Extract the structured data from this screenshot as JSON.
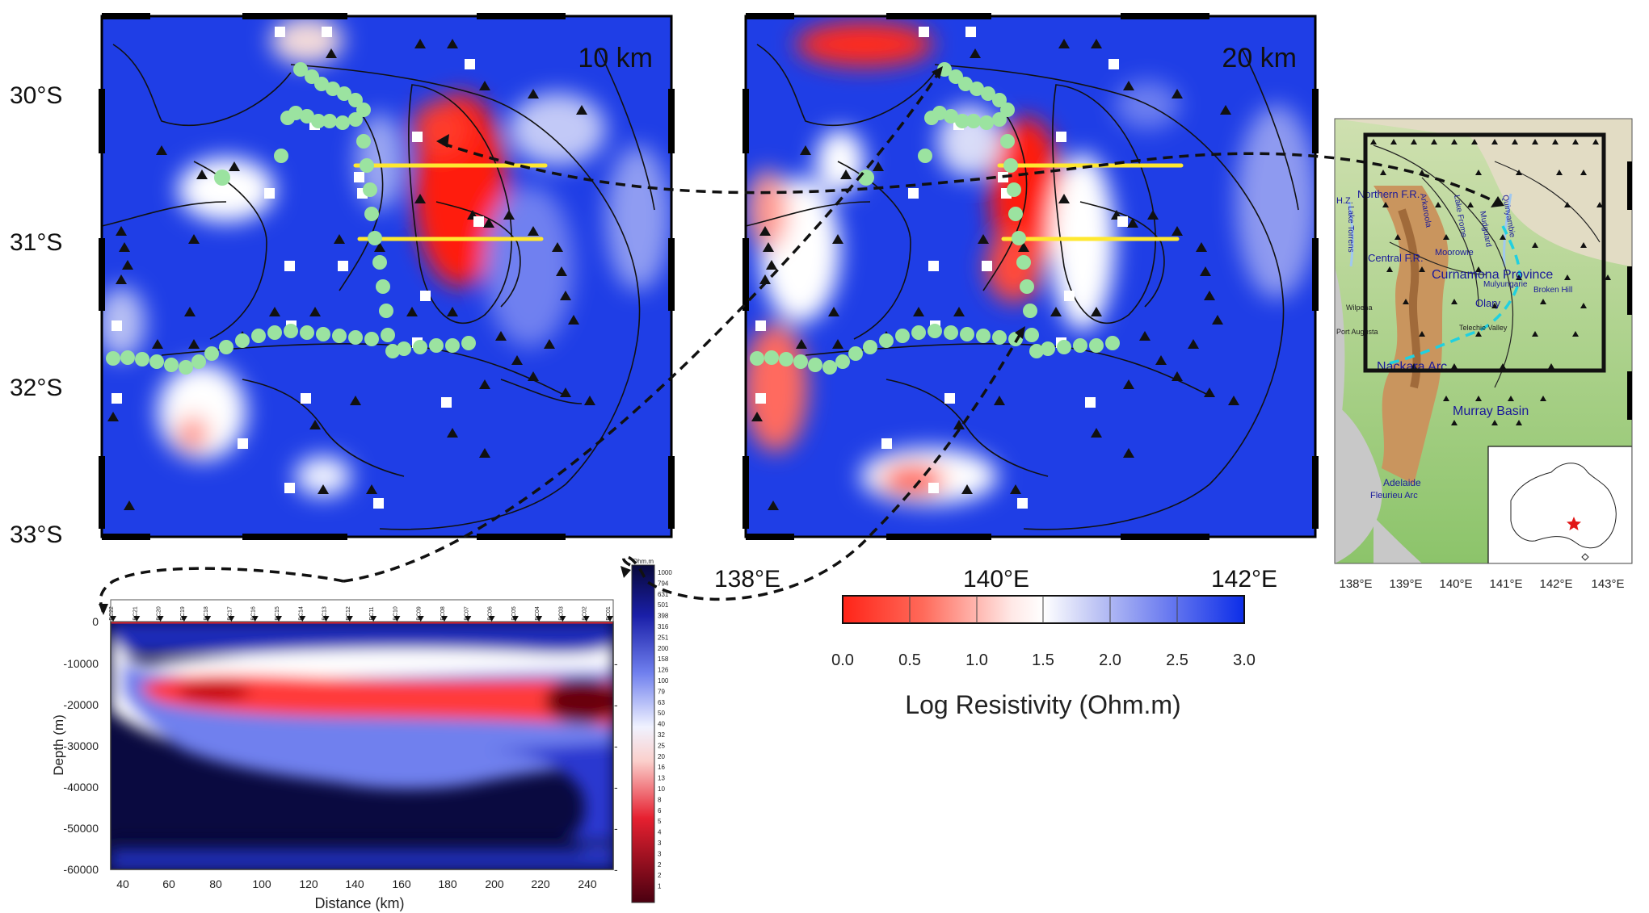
{
  "maps": [
    {
      "depth_label": "10 km"
    },
    {
      "depth_label": "20 km"
    }
  ],
  "lat_labels": [
    "30°S",
    "31°S",
    "32°S",
    "33°S"
  ],
  "lon_labels": [
    "138°E",
    "140°E",
    "142°E"
  ],
  "colorbar": {
    "title": "Log Resistivity (Ohm.m)",
    "ticks": [
      "0.0",
      "0.5",
      "1.0",
      "1.5",
      "2.0",
      "2.5",
      "3.0"
    ],
    "range": [
      0,
      3
    ],
    "colors": {
      "low": "#ff2a1a",
      "mid": "#ffffff",
      "high": "#1432e6"
    }
  },
  "profile": {
    "ylabel": "Depth (m)",
    "xlabel": "Distance (km)",
    "yticks": [
      "0",
      "-10000",
      "-20000",
      "-30000",
      "-40000",
      "-50000",
      "-60000"
    ],
    "xticks": [
      "40",
      "60",
      "80",
      "100",
      "120",
      "140",
      "160",
      "180",
      "200",
      "220",
      "240"
    ],
    "stations": [
      "BC22",
      "BC21",
      "BC20",
      "BC19",
      "BC18",
      "BC17",
      "BC16",
      "BC15",
      "BC14",
      "BC13",
      "BC12",
      "BC11",
      "BC10",
      "BC09",
      "BC08",
      "BC07",
      "BC06",
      "BC05",
      "BC04",
      "BC03",
      "BC02",
      "BC01"
    ],
    "scale_title": "Ohm.m",
    "scale_values": [
      "1000",
      "794",
      "631",
      "501",
      "398",
      "316",
      "251",
      "200",
      "158",
      "126",
      "100",
      "79",
      "63",
      "50",
      "40",
      "32",
      "25",
      "20",
      "16",
      "13",
      "10",
      "8",
      "6",
      "5",
      "4",
      "3",
      "3",
      "2",
      "2",
      "1"
    ]
  },
  "locator": {
    "labels": {
      "northern_fr": "Northern F.R.",
      "central_fr": "Central F.R.",
      "curnamona": "Curnamona Province",
      "nackara": "Nackara Arc",
      "murray": "Murray Basin",
      "adelaide": "Adelaide",
      "fleurieu": "Fleurieu Arc",
      "olary": "Olary",
      "broken_hill": "Broken Hill",
      "moorowie": "Moorowie",
      "mulyungarie": "Mulyungarie",
      "wilpena": "Wilpena",
      "port_augusta": "Port Augusta",
      "telechie": "Telechie Valley",
      "hz": "H.Z.",
      "lake_torrens": "Lake Torrens",
      "quinyambie": "Quinyambie",
      "mudguard": "Mudguard",
      "lake_frome": "Lake Frome",
      "arkaroola": "Arkaroola"
    },
    "lon_labels": [
      "138°E",
      "139°E",
      "140°E",
      "141°E",
      "142°E",
      "143°E"
    ]
  }
}
